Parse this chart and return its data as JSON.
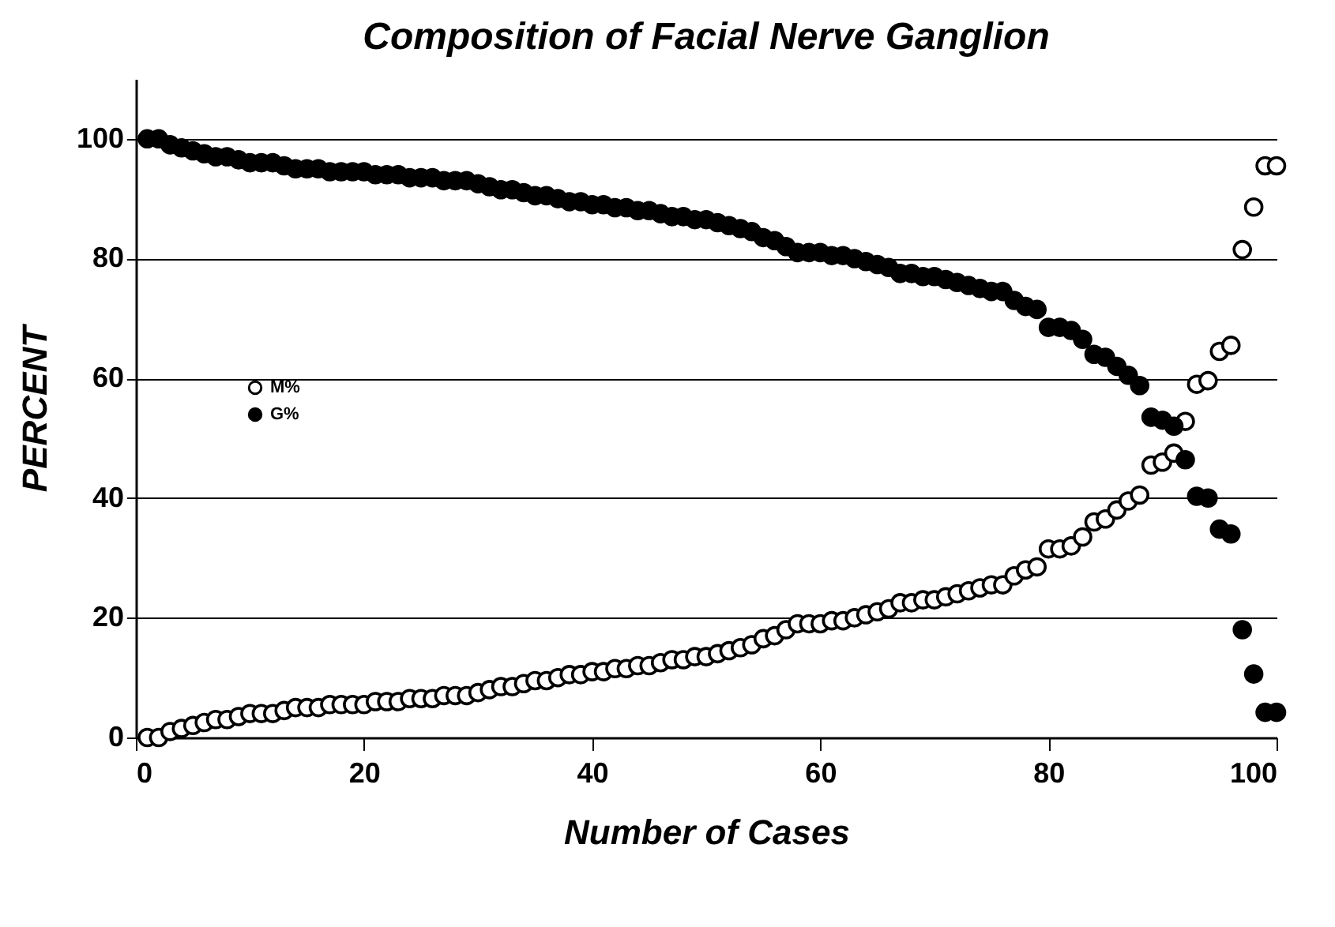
{
  "chart_data": {
    "type": "scatter",
    "title": "Composition of Facial Nerve Ganglion",
    "xlabel": "Number of Cases",
    "ylabel": "PERCENT",
    "xlim": [
      0,
      100
    ],
    "xticks": [
      0,
      20,
      40,
      60,
      80,
      100
    ],
    "ylim": [
      0,
      110
    ],
    "yticks": [
      0,
      20,
      40,
      60,
      80,
      100
    ],
    "grid": "y",
    "legend": "left",
    "marker": "circle",
    "x": [
      1,
      2,
      3,
      4,
      5,
      6,
      7,
      8,
      9,
      10,
      11,
      12,
      13,
      14,
      15,
      16,
      17,
      18,
      19,
      20,
      21,
      22,
      23,
      24,
      25,
      26,
      27,
      28,
      29,
      30,
      31,
      32,
      33,
      34,
      35,
      36,
      37,
      38,
      39,
      40,
      41,
      42,
      43,
      44,
      45,
      46,
      47,
      48,
      49,
      50,
      51,
      52,
      53,
      54,
      55,
      56,
      57,
      58,
      59,
      60,
      61,
      62,
      63,
      64,
      65,
      66,
      67,
      68,
      69,
      70,
      71,
      72,
      73,
      74,
      75,
      76,
      77,
      78,
      79,
      80,
      81,
      82,
      83,
      84,
      85,
      86,
      87,
      88,
      89,
      90,
      91,
      92,
      93,
      94,
      95,
      96,
      97,
      98,
      99,
      100
    ],
    "series": [
      {
        "name": "M%",
        "color": "#ffffff",
        "values": [
          0,
          0,
          1,
          1.5,
          2,
          2.5,
          3,
          3,
          3.5,
          4,
          4,
          4,
          4.5,
          5,
          5,
          5,
          5.5,
          5.5,
          5.5,
          5.5,
          6,
          6,
          6,
          6.5,
          6.5,
          6.5,
          7,
          7,
          7,
          7.5,
          8,
          8.5,
          8.5,
          9,
          9.5,
          9.5,
          10,
          10.5,
          10.5,
          11,
          11,
          11.5,
          11.5,
          12,
          12,
          12.5,
          13,
          13,
          13.5,
          13.5,
          14,
          14.5,
          15,
          15.5,
          16.5,
          17,
          18,
          19,
          19,
          19,
          19.5,
          19.5,
          20,
          20.5,
          21,
          21.5,
          22.5,
          22.5,
          23,
          23,
          23.5,
          24,
          24.5,
          25,
          25.5,
          25.5,
          27,
          28,
          28.5,
          31.5,
          31.5,
          32,
          33.5,
          36,
          36.5,
          38,
          39.5,
          40.5,
          45.5,
          46,
          47.5,
          52.8,
          59,
          59.6,
          64.5,
          65.5,
          81.5,
          88.6,
          95.5,
          95.5
        ]
      },
      {
        "name": "G%",
        "color": "#000000",
        "values": [
          100,
          100,
          99,
          98.5,
          98,
          97.5,
          97,
          97,
          96.5,
          96,
          96,
          96,
          95.5,
          95,
          95,
          95,
          94.5,
          94.5,
          94.5,
          94.5,
          94,
          94,
          94,
          93.5,
          93.5,
          93.5,
          93,
          93,
          93,
          92.5,
          92,
          91.5,
          91.5,
          91,
          90.5,
          90.5,
          90,
          89.5,
          89.5,
          89,
          89,
          88.5,
          88.5,
          88,
          88,
          87.5,
          87,
          87,
          86.5,
          86.5,
          86,
          85.5,
          85,
          84.5,
          83.5,
          83,
          82,
          81,
          81,
          81,
          80.5,
          80.5,
          80,
          79.5,
          79,
          78.5,
          77.5,
          77.5,
          77,
          77,
          76.5,
          76,
          75.5,
          75,
          74.5,
          74.5,
          73,
          72,
          71.5,
          68.5,
          68.5,
          68,
          66.5,
          64,
          63.5,
          62,
          60.5,
          58.8,
          53.5,
          53,
          52,
          46.4,
          40.3,
          40,
          34.8,
          34,
          18,
          10.6,
          4.2,
          4.2
        ]
      }
    ]
  }
}
